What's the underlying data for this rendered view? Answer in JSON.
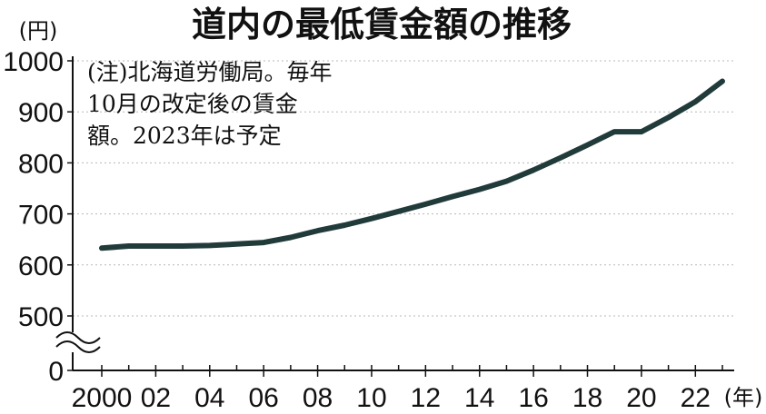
{
  "chart_data": {
    "type": "line",
    "title": "道内の最低賃金額の推移",
    "unit_y": "(円)",
    "unit_x": "(年)",
    "note_lines": [
      "(注)北海道労働局。毎年",
      "10月の改定後の賃金",
      "額。2023年は予定"
    ],
    "axis_break": "≈",
    "ylim": [
      0,
      1000
    ],
    "y_ticks": [
      {
        "value": 0,
        "label": "0"
      },
      {
        "value": 500,
        "label": "500"
      },
      {
        "value": 600,
        "label": "600"
      },
      {
        "value": 700,
        "label": "700"
      },
      {
        "value": 800,
        "label": "800"
      },
      {
        "value": 900,
        "label": "900"
      },
      {
        "value": 1000,
        "label": "1000"
      }
    ],
    "x_ticks": [
      {
        "value": 2000,
        "label": "2000"
      },
      {
        "value": 2002,
        "label": "02"
      },
      {
        "value": 2004,
        "label": "04"
      },
      {
        "value": 2006,
        "label": "06"
      },
      {
        "value": 2008,
        "label": "08"
      },
      {
        "value": 2010,
        "label": "10"
      },
      {
        "value": 2012,
        "label": "12"
      },
      {
        "value": 2014,
        "label": "14"
      },
      {
        "value": 2016,
        "label": "16"
      },
      {
        "value": 2018,
        "label": "18"
      },
      {
        "value": 2020,
        "label": "20"
      },
      {
        "value": 2022,
        "label": "22"
      }
    ],
    "x": [
      2000,
      2001,
      2002,
      2003,
      2004,
      2005,
      2006,
      2007,
      2008,
      2009,
      2010,
      2011,
      2012,
      2013,
      2014,
      2015,
      2016,
      2017,
      2018,
      2019,
      2020,
      2021,
      2022,
      2023
    ],
    "series": [
      {
        "values": [
          633,
          637,
          637,
          637,
          638,
          641,
          644,
          654,
          667,
          678,
          691,
          705,
          719,
          734,
          748,
          764,
          786,
          810,
          835,
          861,
          861,
          889,
          920,
          960
        ],
        "color": "#213a3a"
      }
    ]
  }
}
